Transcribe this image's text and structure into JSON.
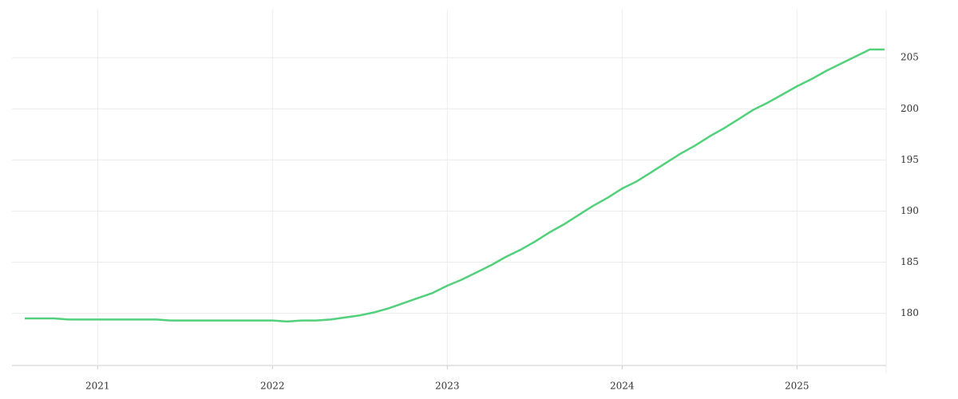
{
  "chart_data": {
    "type": "line",
    "x": [
      2020.583,
      2020.75,
      2020.833,
      2021.0,
      2021.333,
      2021.417,
      2022.0,
      2022.083,
      2022.167,
      2022.25,
      2022.333,
      2022.417,
      2022.5,
      2022.583,
      2022.667,
      2022.75,
      2022.833,
      2022.917,
      2023.0,
      2023.083,
      2023.167,
      2023.25,
      2023.333,
      2023.417,
      2023.5,
      2023.583,
      2023.667,
      2023.75,
      2023.833,
      2023.917,
      2024.0,
      2024.083,
      2024.167,
      2024.25,
      2024.333,
      2024.417,
      2024.5,
      2024.583,
      2024.667,
      2024.75,
      2024.833,
      2024.917,
      2025.0,
      2025.083,
      2025.167,
      2025.25,
      2025.333,
      2025.417,
      2025.5
    ],
    "series": [
      {
        "color": "#52d07c",
        "values": [
          179.5,
          179.5,
          179.4,
          179.4,
          179.4,
          179.3,
          179.3,
          179.2,
          179.3,
          179.3,
          179.4,
          179.6,
          179.8,
          180.1,
          180.5,
          181.0,
          181.5,
          182.0,
          182.7,
          183.3,
          184.0,
          184.7,
          185.5,
          186.2,
          187.0,
          187.9,
          188.7,
          189.6,
          190.5,
          191.3,
          192.2,
          192.9,
          193.8,
          194.7,
          195.6,
          196.4,
          197.3,
          198.1,
          199.0,
          199.9,
          200.6,
          201.4,
          202.2,
          202.9,
          203.7,
          204.4,
          205.1,
          205.8,
          205.8
        ]
      }
    ],
    "xlim": [
      2020.51,
      2025.51
    ],
    "xticks": [
      2021,
      2022,
      2023,
      2024,
      2025
    ],
    "ylim": [
      174.9,
      209.7
    ],
    "yticks": [
      180,
      185,
      190,
      195,
      200,
      205
    ],
    "grid": true
  }
}
